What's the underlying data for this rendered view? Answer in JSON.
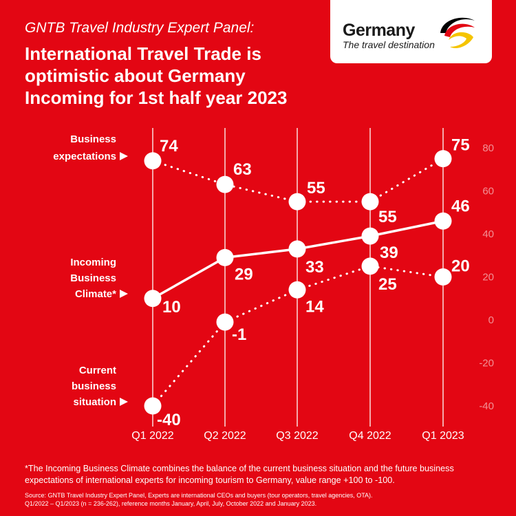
{
  "kicker": "GNTB Travel Industry Expert Panel:",
  "title": "International Travel Trade is optimistic about Germany Incoming for 1st half year 2023",
  "logo": {
    "name": "Germany",
    "tagline": "The travel destination",
    "colors": [
      "#000000",
      "#e30613",
      "#f5c400"
    ]
  },
  "footnote": "*The Incoming Business Climate combines the balance of the current business situation and the future business expectations of international experts for incoming tourism to Germany, value range +100 to -100.",
  "source_lines": [
    "Source: GNTB Travel Industry Expert Panel, Experts are international CEOs and buyers (tour operators, travel agencies, OTA).",
    "Q1/2022 – Q1/2023 (n = 236-262),  reference months January, April, July, October 2022 and January 2023."
  ],
  "chart_data": {
    "type": "line",
    "categories": [
      "Q1 2022",
      "Q2 2022",
      "Q3 2022",
      "Q4 2022",
      "Q1 2023"
    ],
    "ylim": [
      -40,
      80
    ],
    "yticks": [
      80,
      60,
      40,
      20,
      0,
      -20,
      -40
    ],
    "series": [
      {
        "name": "Business expectations",
        "values": [
          74,
          63,
          55,
          55,
          75
        ],
        "style": "dotted",
        "label_lines": [
          "Business",
          "expectations"
        ]
      },
      {
        "name": "Incoming Business Climate*",
        "values": [
          10,
          29,
          33,
          39,
          46
        ],
        "style": "solid",
        "label_lines": [
          "Incoming",
          "Business",
          "Climate*"
        ]
      },
      {
        "name": "Current business situation",
        "values": [
          -40,
          -1,
          14,
          25,
          20
        ],
        "style": "dotted",
        "label_lines": [
          "Current",
          "business",
          "situation"
        ]
      }
    ],
    "background_color": "#e30613",
    "line_color": "#ffffff"
  }
}
